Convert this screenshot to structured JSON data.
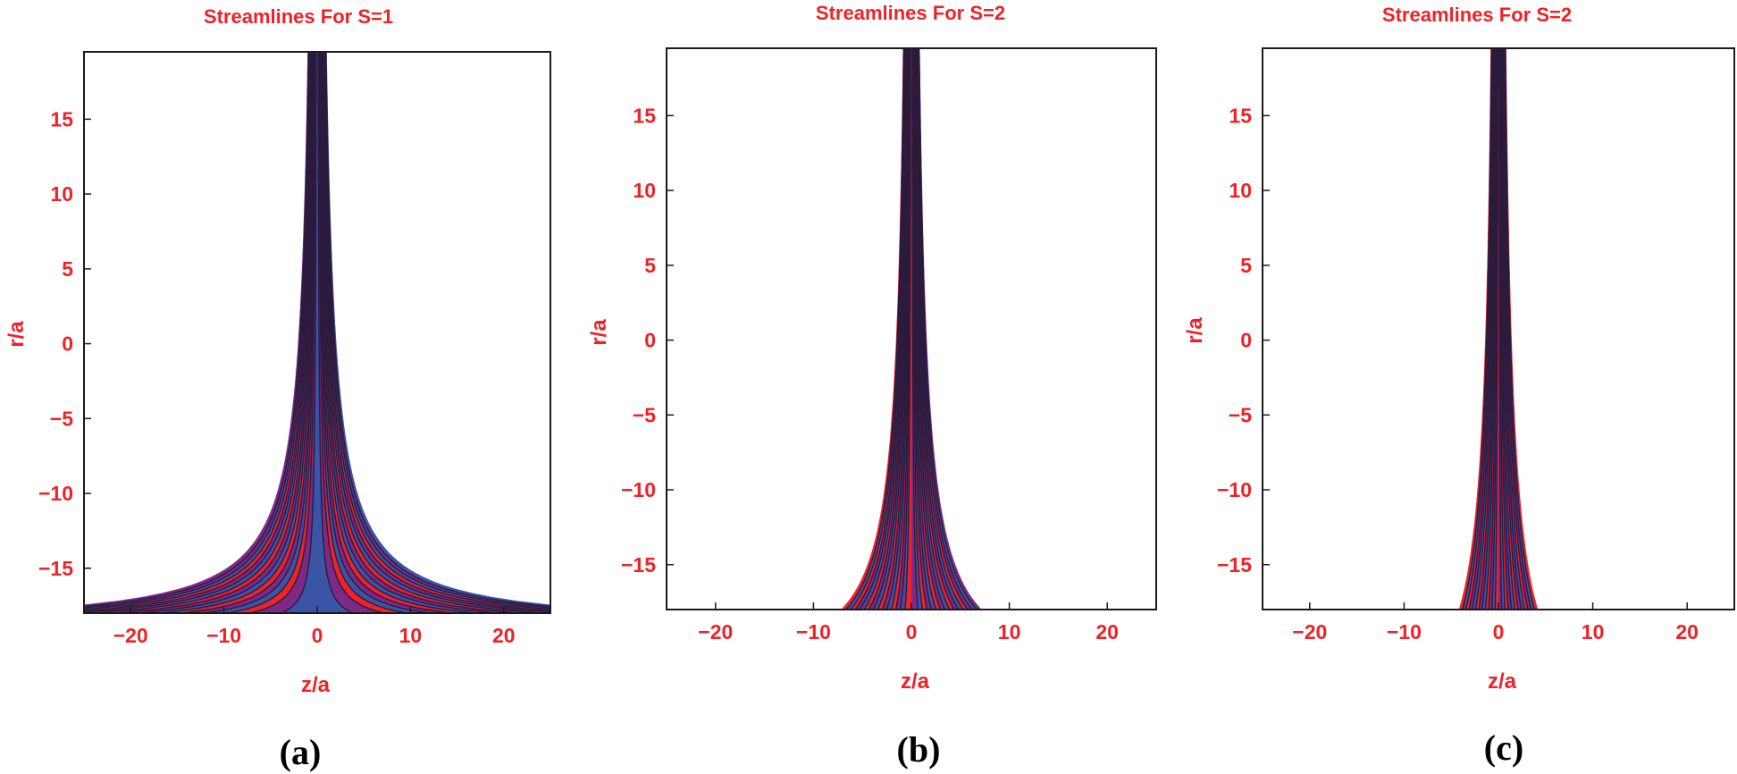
{
  "figure": {
    "colors": {
      "blue": "#3b55a6",
      "purple": "#7b2a86",
      "red": "#ee2227",
      "contour_line": "#2a1b3d",
      "text": "#ee2227"
    }
  },
  "chart_data": [
    {
      "type": "contour",
      "caption": "(a)",
      "title": "Streamlines For S=1",
      "xlabel": "z/a",
      "ylabel": "r/a",
      "xlim": [
        -25,
        25
      ],
      "ylim": [
        -18,
        19.5
      ],
      "xticks": [
        -20,
        -10,
        0,
        10,
        20
      ],
      "yticks": [
        -15,
        -10,
        -5,
        0,
        5,
        10,
        15
      ],
      "center": -19,
      "spacing": 3,
      "levels": [
        1.28,
        2.4,
        3.2,
        4.0,
        4.8,
        5.6,
        6.4,
        7.2,
        8.0,
        8.8,
        9.6,
        10.4,
        11.2,
        12.0
      ],
      "band_colors": [
        "blue",
        "purple",
        "red",
        "blue",
        "purple",
        "red",
        "blue",
        "purple",
        "red",
        "blue",
        "purple",
        "red",
        "blue",
        "purple",
        "blue"
      ],
      "band_colors_left": [
        "blue",
        "purple",
        "red",
        "blue",
        "purple",
        "red",
        "blue",
        "purple",
        "red",
        "blue",
        "purple",
        "red",
        "blue",
        "purple",
        "purple"
      ],
      "outer_level": 12.9
    },
    {
      "type": "contour",
      "caption": "(b)",
      "title": "Streamlines For S=2",
      "xlabel": "z/a",
      "ylabel": "r/a",
      "xlim": [
        -25,
        25
      ],
      "ylim": [
        -18,
        19.5
      ],
      "xticks": [
        -20,
        -10,
        0,
        10,
        20
      ],
      "yticks": [
        -15,
        -10,
        -5,
        0,
        5,
        10,
        15
      ],
      "center": -23,
      "spacing": 3.3,
      "levels": [
        1.0,
        1.7,
        2.4,
        3.1,
        3.8,
        4.5,
        5.2,
        5.9,
        6.6,
        7.3,
        8.0,
        8.7,
        9.4,
        10.1
      ],
      "band_colors": [
        "purple",
        "blue",
        "red",
        "purple",
        "blue",
        "red",
        "purple",
        "blue",
        "red",
        "purple",
        "blue",
        "red",
        "purple",
        "blue",
        "purple"
      ],
      "band_colors_left": [
        "red",
        "blue",
        "purple",
        "red",
        "blue",
        "purple",
        "red",
        "blue",
        "purple",
        "red",
        "blue",
        "purple",
        "red",
        "blue",
        "red"
      ],
      "outer_level": 10.8
    },
    {
      "type": "contour",
      "caption": "(c)",
      "title": "Streamlines For S=2",
      "xlabel": "z/a",
      "ylabel": "r/a",
      "xlim": [
        -25,
        25
      ],
      "ylim": [
        -18,
        19.5
      ],
      "xticks": [
        -20,
        -10,
        0,
        10,
        20
      ],
      "yticks": [
        -15,
        -10,
        -5,
        0,
        5,
        10,
        15
      ],
      "center": -27,
      "spacing": 3.9,
      "levels": [
        0.8,
        1.6,
        2.4,
        3.2,
        4.0,
        4.8,
        5.6,
        6.4,
        7.2,
        8.0,
        8.8
      ],
      "band_colors": [
        "purple",
        "blue",
        "red",
        "purple",
        "blue",
        "red",
        "purple",
        "blue",
        "red",
        "purple",
        "blue",
        "red"
      ],
      "band_colors_left": [
        "red",
        "blue",
        "purple",
        "red",
        "blue",
        "purple",
        "red",
        "blue",
        "purple",
        "red",
        "blue",
        "red"
      ],
      "outer_level": 9.6
    }
  ]
}
